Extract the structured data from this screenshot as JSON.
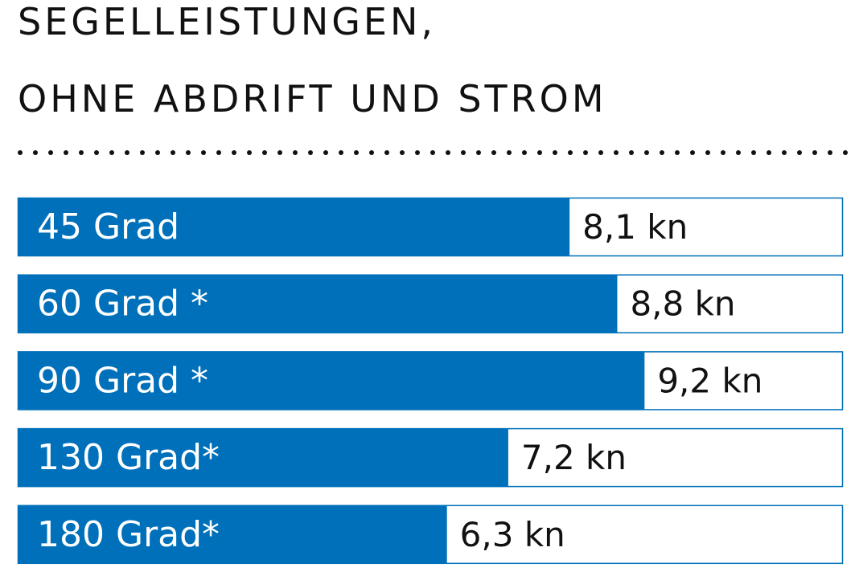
{
  "chart_data": {
    "type": "bar",
    "orientation": "horizontal",
    "title": [
      "SEGELLEISTUNGEN,",
      "OHNE ABDRIFT UND STROM"
    ],
    "categories": [
      "45 Grad",
      "60 Grad *",
      "90 Grad *",
      "130 Grad*",
      "180 Grad*"
    ],
    "values": [
      8.1,
      8.8,
      9.2,
      7.2,
      6.3
    ],
    "value_labels": [
      "8,1 kn",
      "8,8 kn",
      "9,2 kn",
      "7,2 kn",
      "6,3 kn"
    ],
    "unit": "kn",
    "xlim": [
      0,
      12.1
    ],
    "grid": false,
    "colors": {
      "bar": "#0070BA",
      "track_border": "#0070BA",
      "text_on_bar": "#FFFFFF",
      "value_text": "#111111"
    }
  }
}
